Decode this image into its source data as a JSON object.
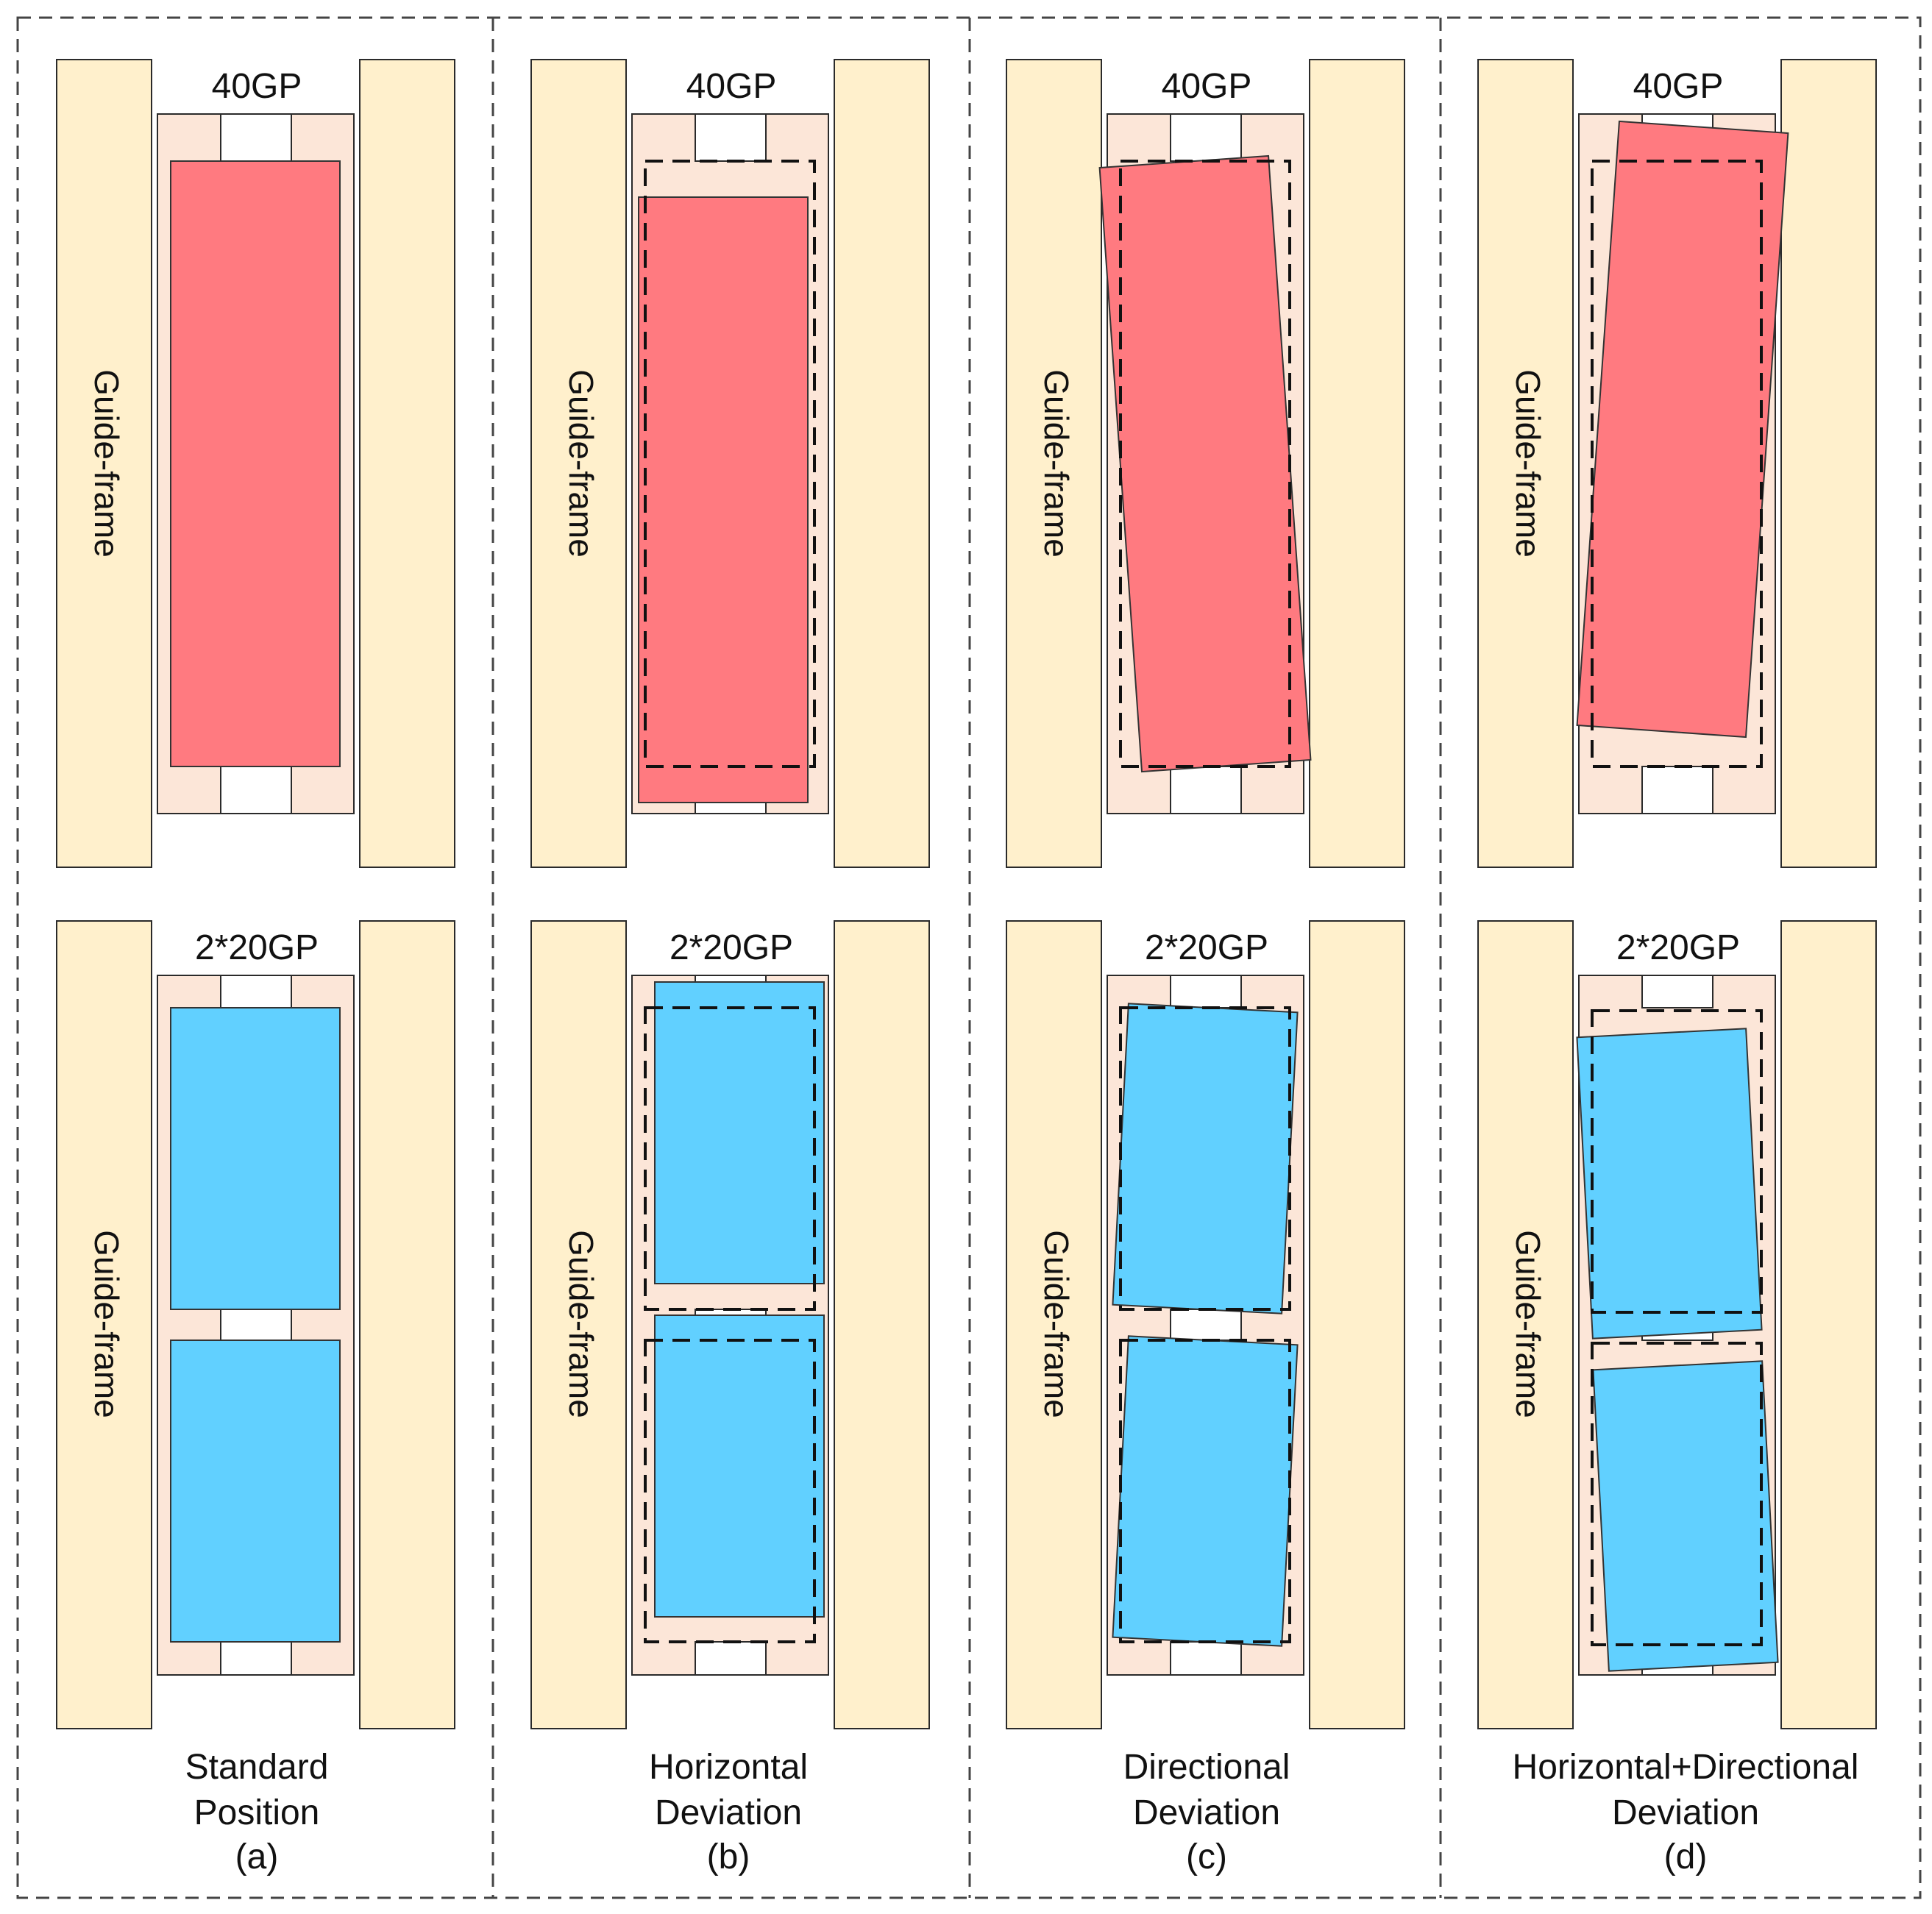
{
  "top_label": "40GP",
  "bottom_label": "2*20GP",
  "guide_frame_label": "Guide-frame",
  "panels": [
    {
      "caption_line1": "Standard",
      "caption_line2": "Position",
      "caption_letter": "(a)"
    },
    {
      "caption_line1": "Horizontal",
      "caption_line2": "Deviation",
      "caption_letter": "(b)"
    },
    {
      "caption_line1": "Directional",
      "caption_line2": "Deviation",
      "caption_letter": "(c)"
    },
    {
      "caption_line1": "Horizontal+Directional",
      "caption_line2": "Deviation",
      "caption_letter": "(d)"
    }
  ],
  "colors": {
    "guide_frame": "#FFF0CC",
    "slot": "#FCE6D8",
    "container_40gp": "#FF7A80",
    "container_20gp": "#61D0FF"
  }
}
